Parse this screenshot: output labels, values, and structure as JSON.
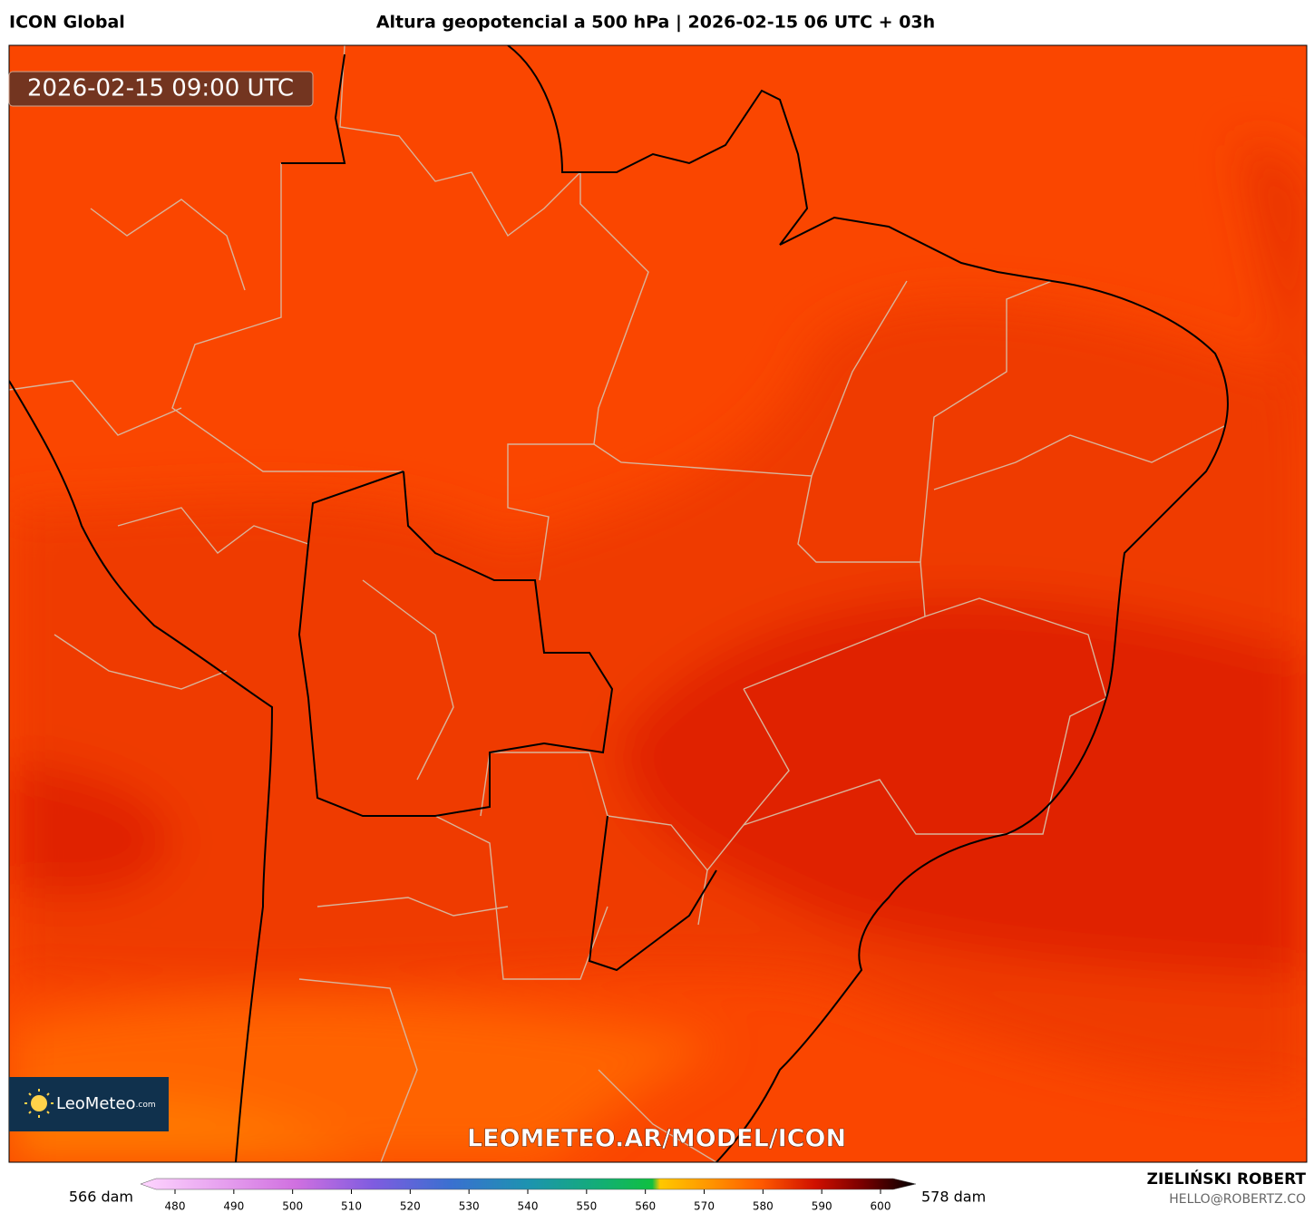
{
  "header": {
    "model": "ICON Global",
    "title": "Altura geopotencial a 500 hPa | 2026-02-15 06 UTC + 03h"
  },
  "map": {
    "valid_time": "2026-02-15 09:00 UTC",
    "watermark": "LEOMETEO.AR/MODEL/ICON",
    "logo": "LeoMeteo",
    "logo_suffix": ".com"
  },
  "colorbar": {
    "min_label": "566 dam",
    "max_label": "578 dam",
    "ticks": [
      480,
      490,
      500,
      510,
      520,
      530,
      540,
      550,
      560,
      570,
      580,
      590,
      600
    ]
  },
  "footer": {
    "author": "ZIELIŃSKI ROBERT",
    "email": "HELLO@ROBERTZ.CO"
  }
}
